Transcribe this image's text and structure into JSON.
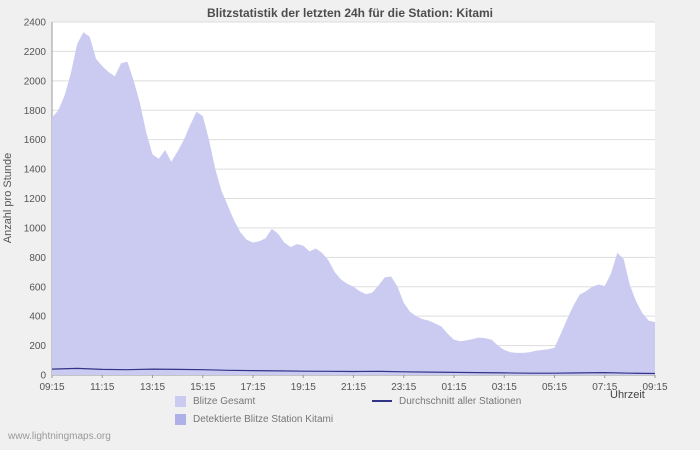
{
  "page": {
    "watermark": "www.lightningmaps.org"
  },
  "chart_data": {
    "type": "area",
    "title": "Blitzstatistik der letzten 24h für die Station: Kitami",
    "ylabel": "Anzahl pro Stunde",
    "xlabel": "Uhrzeit",
    "ylim": [
      0,
      2400
    ],
    "ytick_step": 200,
    "x_range_hours": [
      0,
      24
    ],
    "x_tick_labels": [
      "09:15",
      "11:15",
      "13:15",
      "15:15",
      "17:15",
      "19:15",
      "21:15",
      "23:15",
      "01:15",
      "03:15",
      "05:15",
      "07:15",
      "09:15"
    ],
    "grid": "horizontal-only",
    "legend_position": "bottom",
    "legend": [
      {
        "label": "Blitze Gesamt",
        "type": "area",
        "color": "#cbcbf2"
      },
      {
        "label": "Detektierte Blitze Station Kitami",
        "type": "area",
        "color": "#b0b0e8"
      },
      {
        "label": "Durchschnitt aller Stationen",
        "type": "line",
        "color": "#333388"
      }
    ],
    "series": [
      {
        "name": "Blitze Gesamt",
        "type": "area",
        "color": "#cbcbf2",
        "points": [
          [
            0,
            1750
          ],
          [
            0.25,
            1800
          ],
          [
            0.5,
            1900
          ],
          [
            0.75,
            2050
          ],
          [
            1,
            2250
          ],
          [
            1.25,
            2330
          ],
          [
            1.5,
            2300
          ],
          [
            1.75,
            2150
          ],
          [
            2,
            2100
          ],
          [
            2.25,
            2060
          ],
          [
            2.5,
            2030
          ],
          [
            2.75,
            2120
          ],
          [
            3,
            2130
          ],
          [
            3.25,
            2000
          ],
          [
            3.5,
            1850
          ],
          [
            3.75,
            1650
          ],
          [
            4,
            1500
          ],
          [
            4.25,
            1470
          ],
          [
            4.5,
            1530
          ],
          [
            4.75,
            1450
          ],
          [
            5,
            1520
          ],
          [
            5.25,
            1600
          ],
          [
            5.5,
            1700
          ],
          [
            5.75,
            1790
          ],
          [
            6,
            1760
          ],
          [
            6.25,
            1600
          ],
          [
            6.5,
            1400
          ],
          [
            6.75,
            1250
          ],
          [
            7,
            1150
          ],
          [
            7.25,
            1050
          ],
          [
            7.5,
            970
          ],
          [
            7.75,
            920
          ],
          [
            8,
            900
          ],
          [
            8.25,
            910
          ],
          [
            8.5,
            930
          ],
          [
            8.75,
            995
          ],
          [
            9,
            960
          ],
          [
            9.25,
            900
          ],
          [
            9.5,
            870
          ],
          [
            9.75,
            890
          ],
          [
            10,
            880
          ],
          [
            10.25,
            840
          ],
          [
            10.5,
            860
          ],
          [
            10.75,
            830
          ],
          [
            11,
            780
          ],
          [
            11.25,
            700
          ],
          [
            11.5,
            650
          ],
          [
            11.75,
            620
          ],
          [
            12,
            600
          ],
          [
            12.25,
            570
          ],
          [
            12.5,
            550
          ],
          [
            12.75,
            560
          ],
          [
            13,
            610
          ],
          [
            13.25,
            665
          ],
          [
            13.5,
            670
          ],
          [
            13.75,
            600
          ],
          [
            14,
            490
          ],
          [
            14.25,
            430
          ],
          [
            14.5,
            400
          ],
          [
            14.75,
            380
          ],
          [
            15,
            370
          ],
          [
            15.25,
            350
          ],
          [
            15.5,
            330
          ],
          [
            15.75,
            280
          ],
          [
            16,
            240
          ],
          [
            16.25,
            230
          ],
          [
            16.5,
            235
          ],
          [
            16.75,
            245
          ],
          [
            17,
            255
          ],
          [
            17.25,
            250
          ],
          [
            17.5,
            240
          ],
          [
            17.75,
            200
          ],
          [
            18,
            170
          ],
          [
            18.25,
            155
          ],
          [
            18.5,
            150
          ],
          [
            18.75,
            150
          ],
          [
            19,
            155
          ],
          [
            19.25,
            165
          ],
          [
            19.5,
            170
          ],
          [
            19.75,
            175
          ],
          [
            20,
            185
          ],
          [
            20.25,
            280
          ],
          [
            20.5,
            380
          ],
          [
            20.75,
            470
          ],
          [
            21,
            545
          ],
          [
            21.25,
            570
          ],
          [
            21.5,
            600
          ],
          [
            21.75,
            615
          ],
          [
            22,
            605
          ],
          [
            22.25,
            690
          ],
          [
            22.5,
            830
          ],
          [
            22.75,
            790
          ],
          [
            23,
            610
          ],
          [
            23.25,
            500
          ],
          [
            23.5,
            420
          ],
          [
            23.75,
            370
          ],
          [
            24,
            360
          ]
        ]
      },
      {
        "name": "Durchschnitt aller Stationen",
        "type": "line",
        "color": "#333388",
        "points": [
          [
            0,
            40
          ],
          [
            1,
            45
          ],
          [
            2,
            38
          ],
          [
            3,
            36
          ],
          [
            4,
            40
          ],
          [
            5,
            38
          ],
          [
            6,
            36
          ],
          [
            7,
            32
          ],
          [
            8,
            30
          ],
          [
            9,
            28
          ],
          [
            10,
            26
          ],
          [
            11,
            25
          ],
          [
            12,
            24
          ],
          [
            13,
            25
          ],
          [
            14,
            22
          ],
          [
            15,
            20
          ],
          [
            16,
            18
          ],
          [
            17,
            16
          ],
          [
            18,
            14
          ],
          [
            19,
            12
          ],
          [
            20,
            12
          ],
          [
            21,
            14
          ],
          [
            22,
            16
          ],
          [
            23,
            12
          ],
          [
            24,
            10
          ]
        ]
      }
    ]
  }
}
